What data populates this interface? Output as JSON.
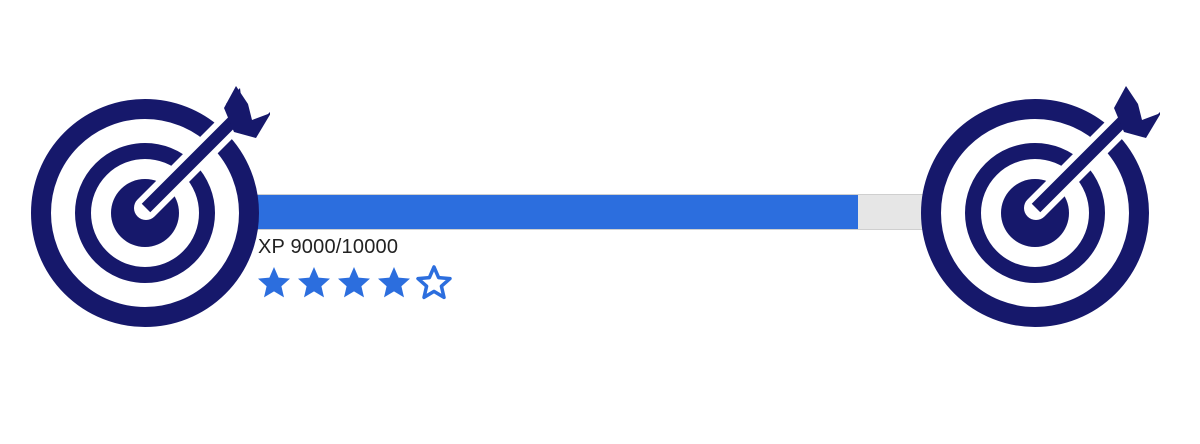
{
  "colors": {
    "navy": "#16186b",
    "accent": "#2c6ede",
    "track": "#e6e6e6"
  },
  "progress": {
    "fraction": 0.9
  },
  "xp": {
    "prefix": "XP",
    "current": "9000",
    "separator": "/",
    "max": "10000"
  },
  "rating": {
    "filled": 4,
    "total": 5
  },
  "icons": {
    "left": "target-arrow-icon",
    "right": "target-arrow-icon",
    "star_filled": "star-filled-icon",
    "star_empty": "star-outline-icon"
  }
}
